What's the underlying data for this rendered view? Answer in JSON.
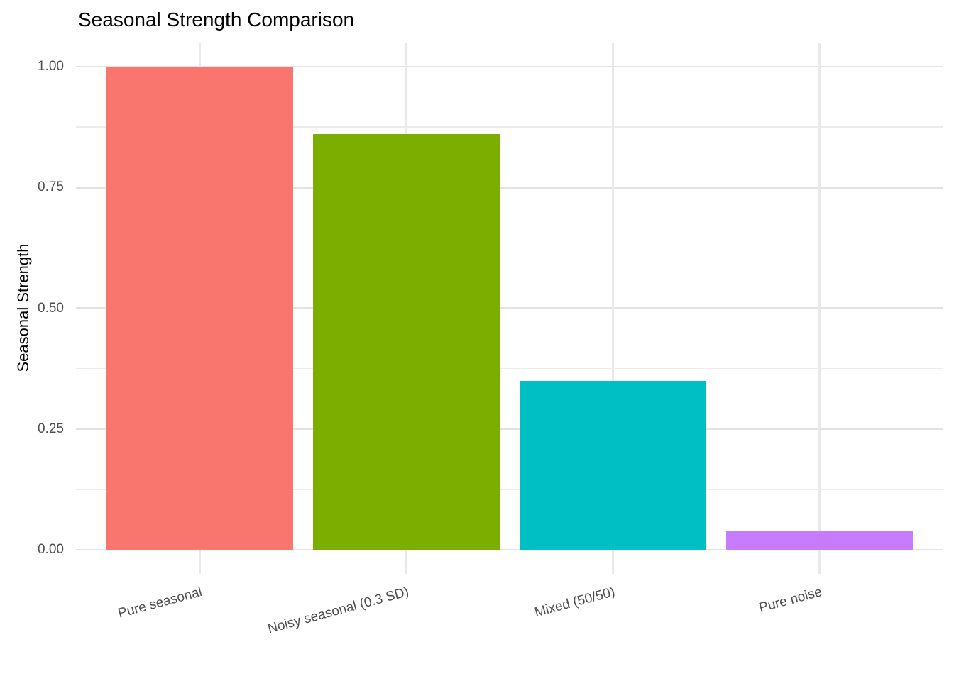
{
  "title": "Seasonal Strength Comparison",
  "chart_data": {
    "type": "bar",
    "title": "Seasonal Strength Comparison",
    "xlabel": "",
    "ylabel": "Seasonal Strength",
    "categories": [
      "Pure seasonal",
      "Noisy seasonal (0.3 SD)",
      "Mixed (50/50)",
      "Pure noise"
    ],
    "values": [
      1.0,
      0.86,
      0.35,
      0.04
    ],
    "bar_colors": [
      "#F8766D",
      "#7CAE00",
      "#00BFC4",
      "#C77CFF"
    ],
    "ylim": [
      0,
      1.05
    ],
    "yticks": [
      0,
      0.25,
      0.5,
      0.75,
      1
    ],
    "ytick_labels": [
      "0.00",
      "0.25",
      "0.50",
      "0.75",
      "1.00"
    ],
    "minor_yticks": [
      0.125,
      0.375,
      0.625,
      0.875
    ],
    "grid": true,
    "legend": "none",
    "x_tick_rotation_deg": -15,
    "colors": {
      "background": "#FFFFFF",
      "grid_major": "#E2E2E2",
      "grid_minor": "#ECECEC",
      "tick_label": "#4D4D4D",
      "title_text": "#000000"
    }
  }
}
